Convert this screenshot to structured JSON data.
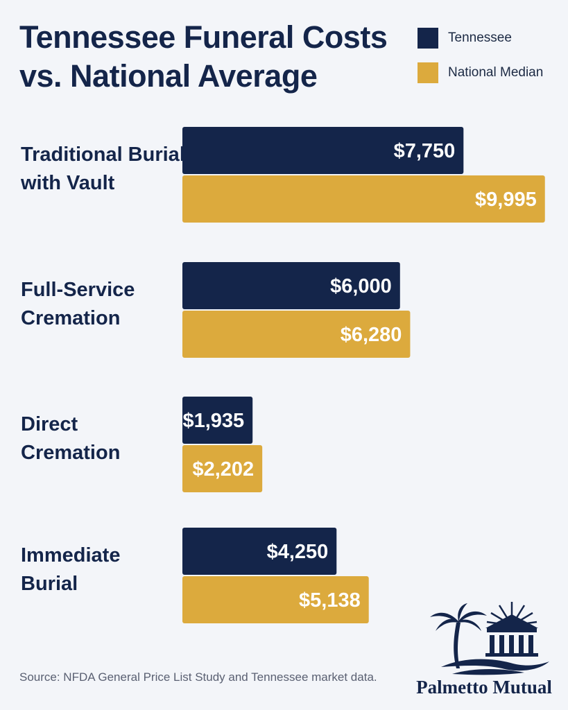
{
  "title_lines": [
    "Tennessee Funeral Costs",
    "vs. National Average"
  ],
  "colors": {
    "tennessee": "#14254a",
    "national": "#dcaa3d",
    "text": "#14254a"
  },
  "chart_data": {
    "type": "bar",
    "orientation": "horizontal",
    "title": "Tennessee Funeral Costs vs. National Average",
    "categories": [
      [
        "Traditional Burial",
        "with Vault"
      ],
      [
        "Full-Service",
        "Cremation"
      ],
      [
        "Direct",
        "Cremation"
      ],
      [
        "Immediate",
        "Burial"
      ]
    ],
    "series": [
      {
        "name": "Tennessee",
        "values": [
          7750,
          6000,
          1935,
          4250
        ],
        "labels": [
          "$7,750",
          "$6,000",
          "$1,935",
          "$4,250"
        ]
      },
      {
        "name": "National Median",
        "values": [
          9995,
          6280,
          2202,
          5138
        ],
        "labels": [
          "$9,995",
          "$6,280",
          "$2,202",
          "$5,138"
        ]
      }
    ],
    "xlim": [
      0,
      10000
    ],
    "grid": false,
    "legend": "top-right"
  },
  "source": "Source: NFDA General Price List Study and Tennessee market data.",
  "logo": {
    "name": "Palmetto Mutual",
    "icon": "palm-tree-and-temple-logo"
  }
}
